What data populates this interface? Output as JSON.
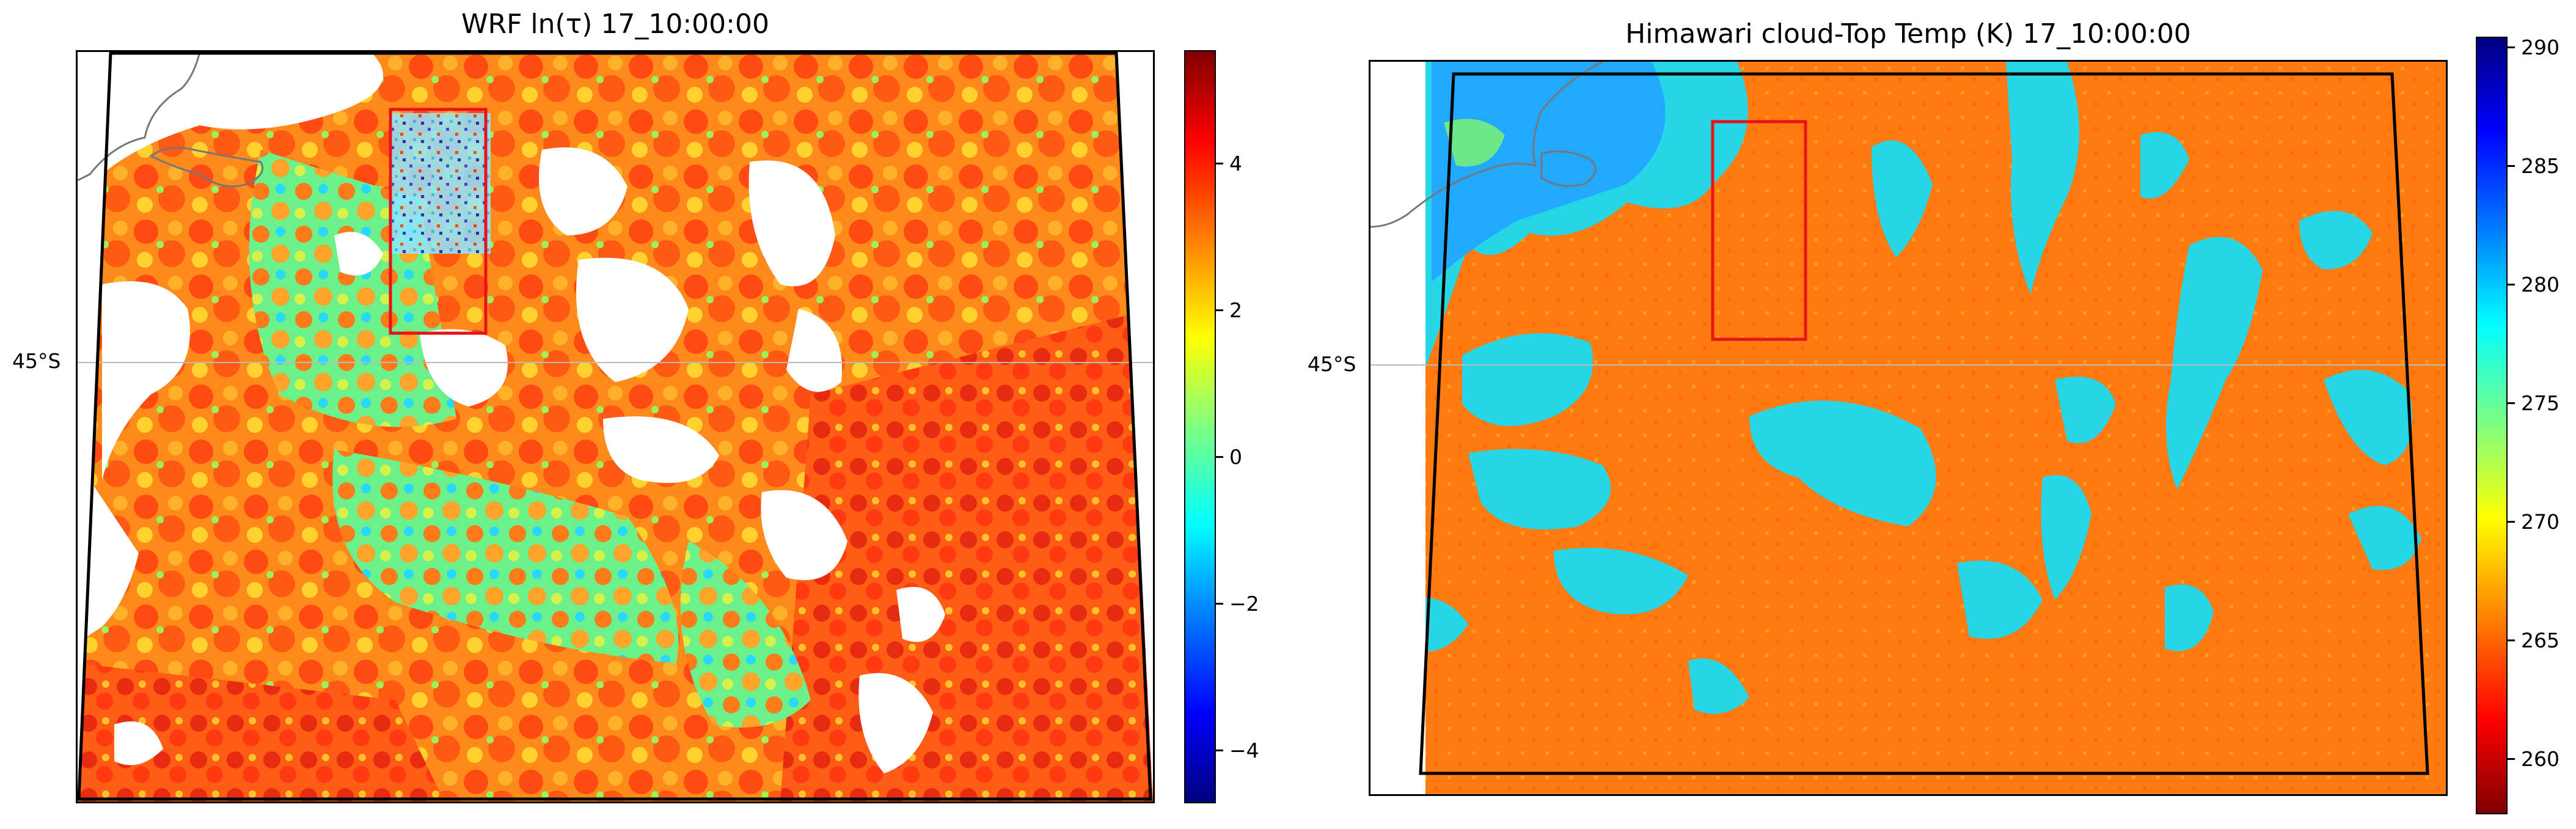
{
  "panels": [
    {
      "title": "WRF ln(τ) 17_10:00:00",
      "lat_label": "45°S",
      "colormap": "jet",
      "colorbar": {
        "min": -5.4,
        "max": 5.4,
        "ticks": [
          "4",
          "2",
          "0",
          "−2",
          "−4"
        ]
      }
    },
    {
      "title": "Himawari cloud-Top Temp (K) 17_10:00:00",
      "lat_label": "45°S",
      "colormap": "jet_r",
      "colorbar": {
        "min": 258,
        "max": 290,
        "ticks": [
          "290",
          "285",
          "280",
          "275",
          "270",
          "265",
          "260"
        ]
      }
    }
  ],
  "colors": {
    "red_box": "#e8121b",
    "domain_outline": "#000000",
    "coastline": "#777777",
    "gridline": "#bbbbbb",
    "wrf_clear_sky": "#ffffff",
    "himawari_cold_cloud": "#ff7a10",
    "himawari_warm": "#27d6e6",
    "himawari_deep_warm": "#22a8ff"
  }
}
